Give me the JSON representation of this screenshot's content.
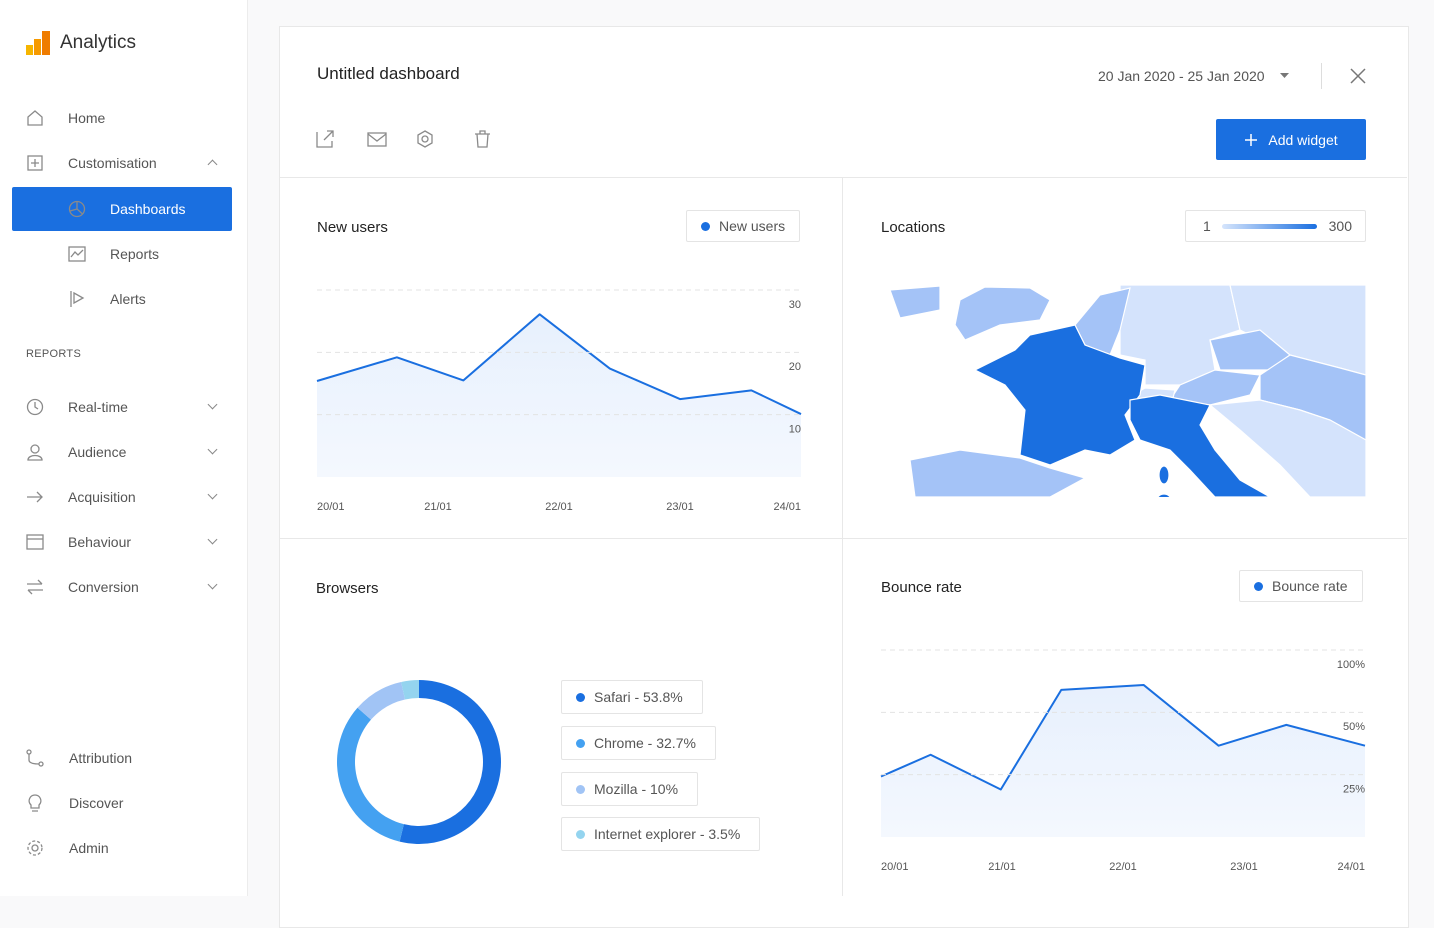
{
  "sidebar": {
    "brand": "Analytics",
    "nav": [
      "Home",
      "Customisation",
      "Dashboards",
      "Reports",
      "Alerts"
    ],
    "section": "REPORTS",
    "reports": [
      "Real-time",
      "Audience",
      "Acquisition",
      "Behaviour",
      "Conversion"
    ],
    "bottom": [
      "Attribution",
      "Discover",
      "Admin"
    ]
  },
  "header": {
    "title": "Untitled dashboard",
    "date_range": "20 Jan 2020 - 25 Jan 2020",
    "button": "Add widget"
  },
  "locations": {
    "title": "Locations",
    "scale_min": 1,
    "scale_max": 300
  },
  "chart_data": [
    {
      "type": "line",
      "title": "New users",
      "x": [
        0,
        0.66,
        1.21,
        1.84,
        2.42,
        3.0,
        3.59,
        4.0
      ],
      "series": [
        {
          "name": "New users",
          "color": "#1a6fe0",
          "values": [
            15.4,
            19.2,
            15.5,
            26.1,
            17.4,
            12.5,
            13.9,
            10.1
          ]
        }
      ],
      "xlim": [
        0,
        4
      ],
      "xticks": [
        {
          "value": 0,
          "label": "20/01"
        },
        {
          "value": 1,
          "label": "21/01"
        },
        {
          "value": 2,
          "label": "22/01"
        },
        {
          "value": 3,
          "label": "23/01"
        },
        {
          "value": 4,
          "label": "24/01"
        }
      ],
      "ylim": [
        0,
        30
      ],
      "yticks": [
        10,
        20,
        30
      ],
      "grid": true
    },
    {
      "type": "pie",
      "donut": true,
      "title": "Browsers",
      "values": [
        53.8,
        32.7,
        10,
        3.5
      ],
      "value_labels": [
        "Safari - 53.8%",
        "Chrome - 32.7%",
        "Mozilla - 10%",
        "Internet explorer - 3.5%"
      ],
      "colors": [
        "#1a6fe0",
        "#44a1f1",
        "#a1c4f5",
        "#94d4ef"
      ]
    },
    {
      "type": "line",
      "title": "Bounce rate",
      "log_scale": true,
      "x": [
        0,
        0.41,
        0.99,
        1.49,
        2.17,
        2.79,
        3.35,
        4.0
      ],
      "series": [
        {
          "name": "Bounce rate",
          "color": "#1a6fe0",
          "values": [
            24.5,
            31.2,
            21.2,
            64.2,
            67.8,
            34.5,
            43.5,
            34.5
          ]
        }
      ],
      "xlim": [
        0,
        4
      ],
      "xticks": [
        {
          "value": 0,
          "label": "20/01"
        },
        {
          "value": 1,
          "label": "21/01"
        },
        {
          "value": 2,
          "label": "22/01"
        },
        {
          "value": 3,
          "label": "23/01"
        },
        {
          "value": 4,
          "label": "24/01"
        }
      ],
      "ylim": [
        12.5,
        100
      ],
      "yticks": [
        {
          "value": 25,
          "label": "25%"
        },
        {
          "value": 50,
          "label": "50%"
        },
        {
          "value": 100,
          "label": "100%"
        }
      ],
      "grid": true
    }
  ]
}
